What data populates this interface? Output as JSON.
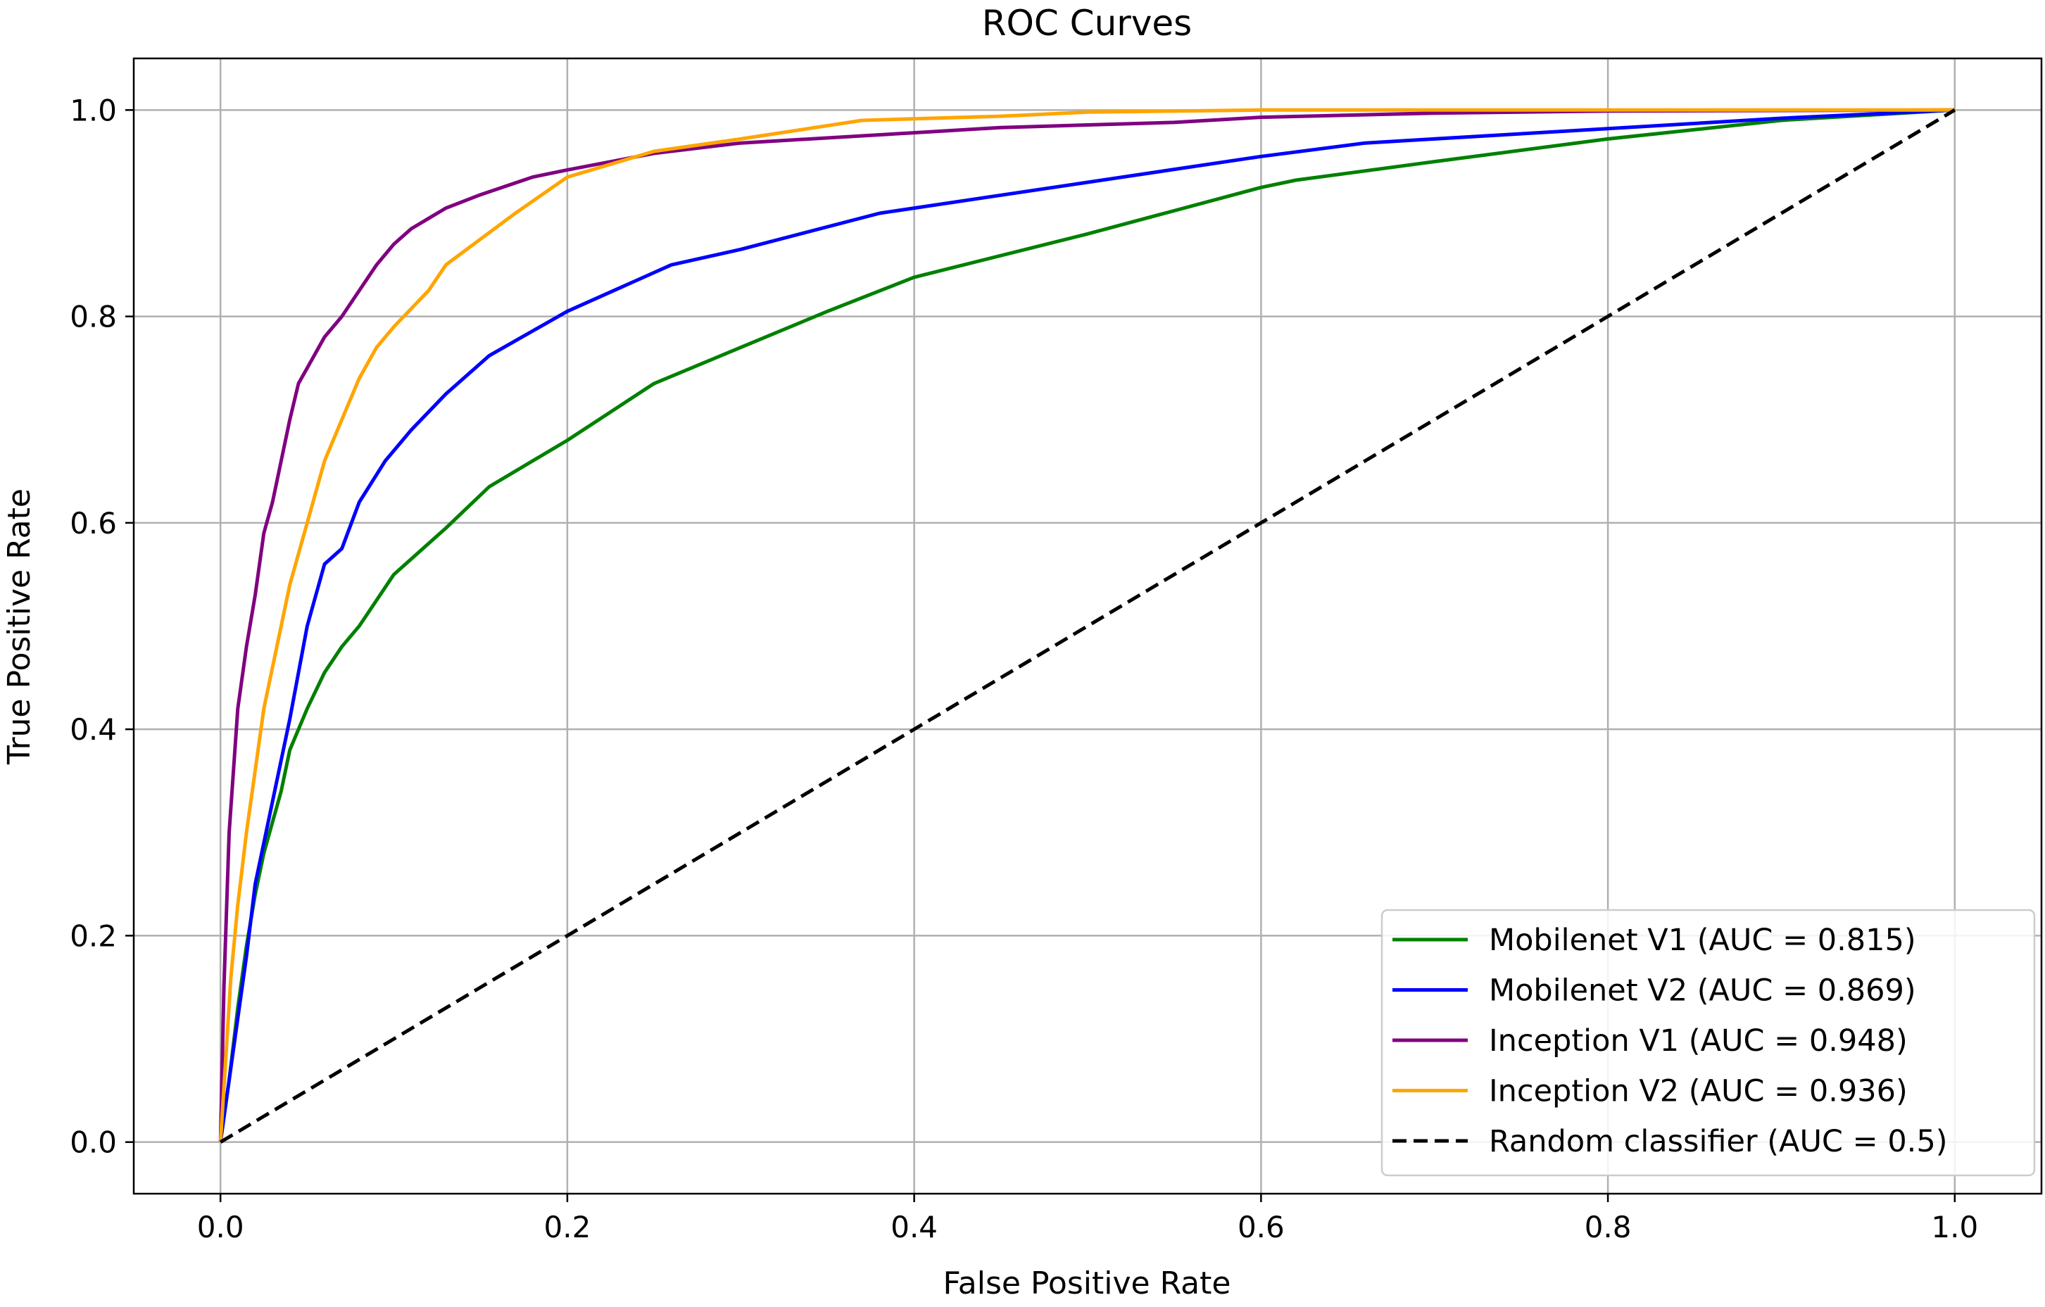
{
  "chart_data": {
    "type": "line",
    "title": "ROC Curves",
    "xlabel": "False Positive Rate",
    "ylabel": "True Positive Rate",
    "xlim": [
      -0.05,
      1.05
    ],
    "ylim": [
      -0.05,
      1.05
    ],
    "xticks": [
      0.0,
      0.2,
      0.4,
      0.6,
      0.8,
      1.0
    ],
    "yticks": [
      0.0,
      0.2,
      0.4,
      0.6,
      0.8,
      1.0
    ],
    "xtick_labels": [
      "0.0",
      "0.2",
      "0.4",
      "0.6",
      "0.8",
      "1.0"
    ],
    "ytick_labels": [
      "0.0",
      "0.2",
      "0.4",
      "0.6",
      "0.8",
      "1.0"
    ],
    "grid": true,
    "legend_position": "bottom-right",
    "series": [
      {
        "name": "Mobilenet V1 (AUC = 0.815)",
        "color": "#008000",
        "dash": "solid",
        "points": [
          [
            0,
            0
          ],
          [
            0.005,
            0.06
          ],
          [
            0.01,
            0.13
          ],
          [
            0.015,
            0.19
          ],
          [
            0.02,
            0.24
          ],
          [
            0.025,
            0.28
          ],
          [
            0.03,
            0.31
          ],
          [
            0.035,
            0.34
          ],
          [
            0.04,
            0.38
          ],
          [
            0.05,
            0.42
          ],
          [
            0.06,
            0.455
          ],
          [
            0.07,
            0.48
          ],
          [
            0.08,
            0.5
          ],
          [
            0.1,
            0.55
          ],
          [
            0.13,
            0.595
          ],
          [
            0.155,
            0.635
          ],
          [
            0.2,
            0.68
          ],
          [
            0.25,
            0.735
          ],
          [
            0.3,
            0.77
          ],
          [
            0.35,
            0.805
          ],
          [
            0.4,
            0.838
          ],
          [
            0.5,
            0.88
          ],
          [
            0.6,
            0.925
          ],
          [
            0.62,
            0.932
          ],
          [
            0.7,
            0.95
          ],
          [
            0.8,
            0.972
          ],
          [
            0.9,
            0.99
          ],
          [
            1.0,
            1.0
          ]
        ]
      },
      {
        "name": "Mobilenet V2 (AUC = 0.869)",
        "color": "#0000ff",
        "dash": "solid",
        "points": [
          [
            0,
            0
          ],
          [
            0.005,
            0.06
          ],
          [
            0.01,
            0.12
          ],
          [
            0.015,
            0.18
          ],
          [
            0.02,
            0.25
          ],
          [
            0.03,
            0.33
          ],
          [
            0.04,
            0.41
          ],
          [
            0.05,
            0.5
          ],
          [
            0.06,
            0.56
          ],
          [
            0.07,
            0.575
          ],
          [
            0.08,
            0.62
          ],
          [
            0.095,
            0.66
          ],
          [
            0.11,
            0.69
          ],
          [
            0.13,
            0.725
          ],
          [
            0.155,
            0.762
          ],
          [
            0.2,
            0.805
          ],
          [
            0.26,
            0.85
          ],
          [
            0.3,
            0.865
          ],
          [
            0.38,
            0.9
          ],
          [
            0.5,
            0.93
          ],
          [
            0.6,
            0.955
          ],
          [
            0.66,
            0.968
          ],
          [
            0.8,
            0.982
          ],
          [
            0.9,
            0.992
          ],
          [
            1.0,
            1.0
          ]
        ]
      },
      {
        "name": "Inception V1 (AUC = 0.948)",
        "color": "#800080",
        "dash": "solid",
        "points": [
          [
            0,
            0
          ],
          [
            0.002,
            0.15
          ],
          [
            0.005,
            0.3
          ],
          [
            0.01,
            0.42
          ],
          [
            0.015,
            0.48
          ],
          [
            0.02,
            0.53
          ],
          [
            0.025,
            0.59
          ],
          [
            0.03,
            0.62
          ],
          [
            0.035,
            0.66
          ],
          [
            0.04,
            0.7
          ],
          [
            0.045,
            0.735
          ],
          [
            0.05,
            0.75
          ],
          [
            0.055,
            0.765
          ],
          [
            0.06,
            0.78
          ],
          [
            0.07,
            0.8
          ],
          [
            0.08,
            0.825
          ],
          [
            0.09,
            0.85
          ],
          [
            0.1,
            0.87
          ],
          [
            0.11,
            0.885
          ],
          [
            0.12,
            0.895
          ],
          [
            0.13,
            0.905
          ],
          [
            0.15,
            0.918
          ],
          [
            0.18,
            0.935
          ],
          [
            0.2,
            0.942
          ],
          [
            0.25,
            0.958
          ],
          [
            0.3,
            0.968
          ],
          [
            0.4,
            0.978
          ],
          [
            0.45,
            0.983
          ],
          [
            0.55,
            0.988
          ],
          [
            0.6,
            0.993
          ],
          [
            0.7,
            0.997
          ],
          [
            0.8,
            0.999
          ],
          [
            1.0,
            1.0
          ]
        ]
      },
      {
        "name": "Inception V2 (AUC = 0.936)",
        "color": "#ffa500",
        "dash": "solid",
        "points": [
          [
            0,
            0
          ],
          [
            0.003,
            0.08
          ],
          [
            0.006,
            0.16
          ],
          [
            0.01,
            0.23
          ],
          [
            0.015,
            0.3
          ],
          [
            0.02,
            0.36
          ],
          [
            0.025,
            0.42
          ],
          [
            0.03,
            0.46
          ],
          [
            0.035,
            0.5
          ],
          [
            0.04,
            0.54
          ],
          [
            0.045,
            0.57
          ],
          [
            0.05,
            0.6
          ],
          [
            0.055,
            0.63
          ],
          [
            0.06,
            0.66
          ],
          [
            0.07,
            0.7
          ],
          [
            0.08,
            0.74
          ],
          [
            0.09,
            0.77
          ],
          [
            0.1,
            0.79
          ],
          [
            0.12,
            0.825
          ],
          [
            0.13,
            0.85
          ],
          [
            0.15,
            0.875
          ],
          [
            0.17,
            0.9
          ],
          [
            0.2,
            0.935
          ],
          [
            0.25,
            0.96
          ],
          [
            0.3,
            0.972
          ],
          [
            0.37,
            0.99
          ],
          [
            0.45,
            0.994
          ],
          [
            0.5,
            0.998
          ],
          [
            0.6,
            1.0
          ],
          [
            0.8,
            1.0
          ],
          [
            1.0,
            1.0
          ]
        ]
      },
      {
        "name": "Random classifier (AUC = 0.5)",
        "color": "#000000",
        "dash": "dashed",
        "points": [
          [
            0,
            0
          ],
          [
            1,
            1
          ]
        ]
      }
    ]
  }
}
